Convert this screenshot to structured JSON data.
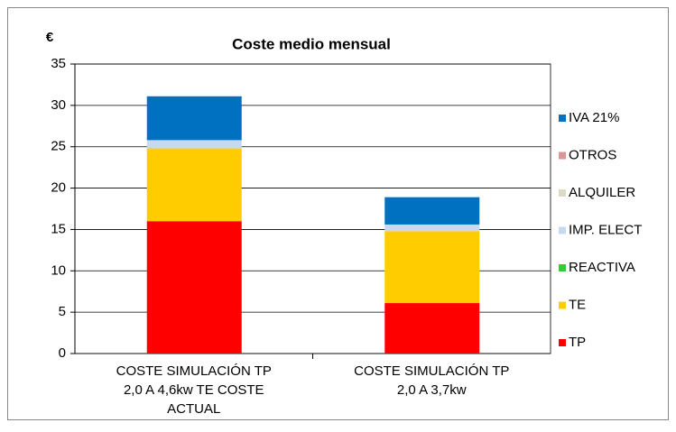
{
  "chart_data": {
    "type": "stacked_bar",
    "title": "Coste medio mensual",
    "y_label": "€",
    "categories": [
      "COSTE SIMULACIÓN TP 2,0 A 4,6kw TE COSTE ACTUAL",
      "COSTE SIMULACIÓN TP 2,0 A 3,7kw"
    ],
    "series": [
      {
        "name": "TP",
        "color": "#ff0000",
        "values": [
          16.0,
          6.1
        ]
      },
      {
        "name": "TE",
        "color": "#ffcc00",
        "values": [
          8.8,
          8.7
        ]
      },
      {
        "name": "REACTIVA",
        "color": "#33cc33",
        "values": [
          0,
          0
        ]
      },
      {
        "name": "IMP. ELECT",
        "color": "#c6d9f1",
        "values": [
          1.0,
          0.8
        ]
      },
      {
        "name": "ALQUILER",
        "color": "#ddd9c3",
        "values": [
          0,
          0
        ]
      },
      {
        "name": "OTROS",
        "color": "#d99694",
        "values": [
          0,
          0
        ]
      },
      {
        "name": "IVA 21%",
        "color": "#0070c0",
        "values": [
          5.3,
          3.3
        ]
      }
    ],
    "ylim": [
      0,
      35
    ],
    "yticks": [
      0,
      5,
      10,
      15,
      20,
      25,
      30,
      35
    ],
    "grid": true,
    "legend": "right"
  }
}
